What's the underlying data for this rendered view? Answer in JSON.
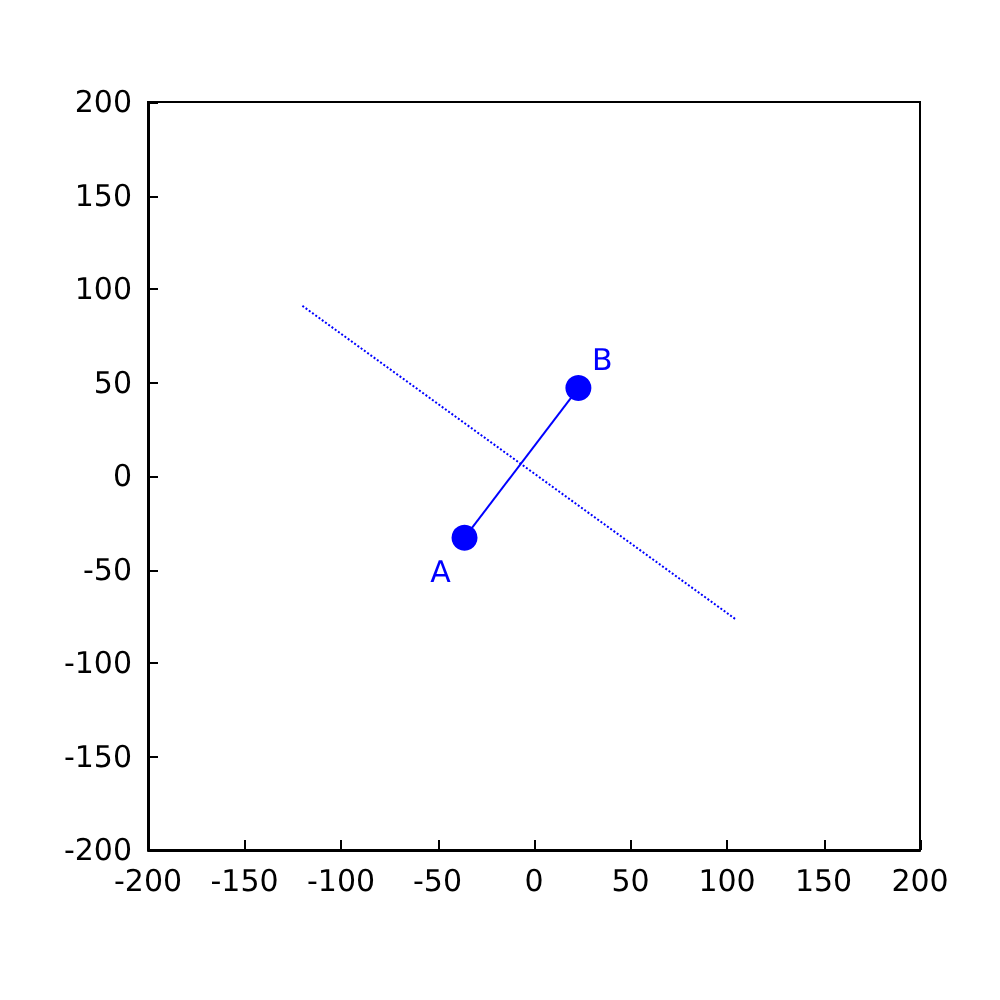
{
  "chart_data": {
    "type": "line",
    "x": [
      -36,
      23
    ],
    "series": [
      {
        "color": "#0000ff",
        "values": [
          -33,
          47
        ],
        "marker": "circle",
        "line_style": "solid"
      },
      {
        "type": "line",
        "color": "#0000ff",
        "x": [
          -120,
          105
        ],
        "values": [
          91,
          -77
        ],
        "marker": "none",
        "line_style": "dotted"
      }
    ],
    "annotations": [
      {
        "text": "A",
        "x": -36,
        "y": -33
      },
      {
        "text": "B",
        "x": 23,
        "y": 47
      }
    ],
    "xlim": [
      -200,
      200
    ],
    "ylim": [
      -200,
      200
    ],
    "xticks": [
      -200,
      -150,
      -100,
      -50,
      0,
      50,
      100,
      150,
      200
    ],
    "yticks": [
      -200,
      -150,
      -100,
      -50,
      0,
      50,
      100,
      150,
      200
    ],
    "grid": false
  }
}
